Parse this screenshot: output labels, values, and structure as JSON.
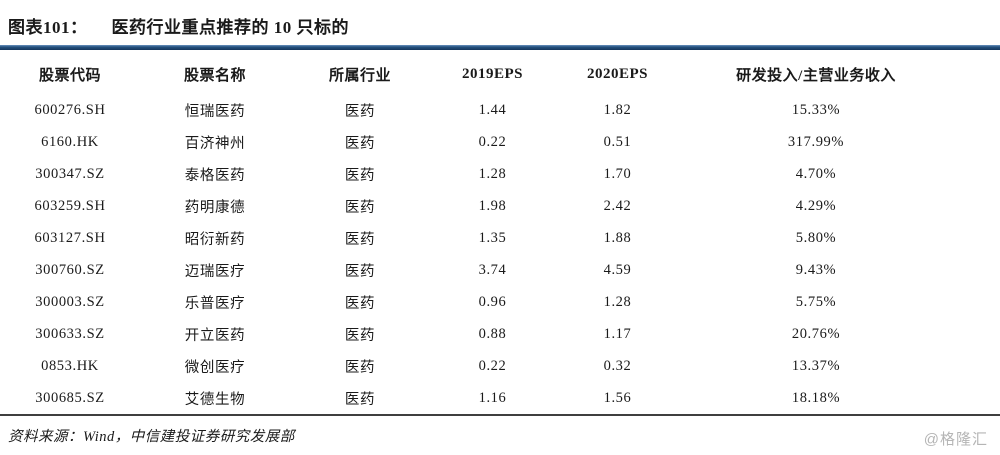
{
  "figure": {
    "label": "图表101：",
    "title": "医药行业重点推荐的 10 只标的"
  },
  "table": {
    "headers": [
      "股票代码",
      "股票名称",
      "所属行业",
      "2019EPS",
      "2020EPS",
      "研发投入/主营业务收入"
    ],
    "rows": [
      [
        "600276.SH",
        "恒瑞医药",
        "医药",
        "1.44",
        "1.82",
        "15.33%"
      ],
      [
        "6160.HK",
        "百济神州",
        "医药",
        "0.22",
        "0.51",
        "317.99%"
      ],
      [
        "300347.SZ",
        "泰格医药",
        "医药",
        "1.28",
        "1.70",
        "4.70%"
      ],
      [
        "603259.SH",
        "药明康德",
        "医药",
        "1.98",
        "2.42",
        "4.29%"
      ],
      [
        "603127.SH",
        "昭衍新药",
        "医药",
        "1.35",
        "1.88",
        "5.80%"
      ],
      [
        "300760.SZ",
        "迈瑞医疗",
        "医药",
        "3.74",
        "4.59",
        "9.43%"
      ],
      [
        "300003.SZ",
        "乐普医疗",
        "医药",
        "0.96",
        "1.28",
        "5.75%"
      ],
      [
        "300633.SZ",
        "开立医药",
        "医药",
        "0.88",
        "1.17",
        "20.76%"
      ],
      [
        "0853.HK",
        "微创医疗",
        "医药",
        "0.22",
        "0.32",
        "13.37%"
      ],
      [
        "300685.SZ",
        "艾德生物",
        "医药",
        "1.16",
        "1.56",
        "18.18%"
      ]
    ]
  },
  "footer": {
    "source": "资料来源：Wind，中信建投证券研究发展部"
  },
  "watermark": "@格隆汇",
  "colors": {
    "accent_line": "#1F4E79",
    "table_bottom_border": "#3F3F3F",
    "text": "#1A1A1A",
    "watermark": "#B5B5B5"
  }
}
